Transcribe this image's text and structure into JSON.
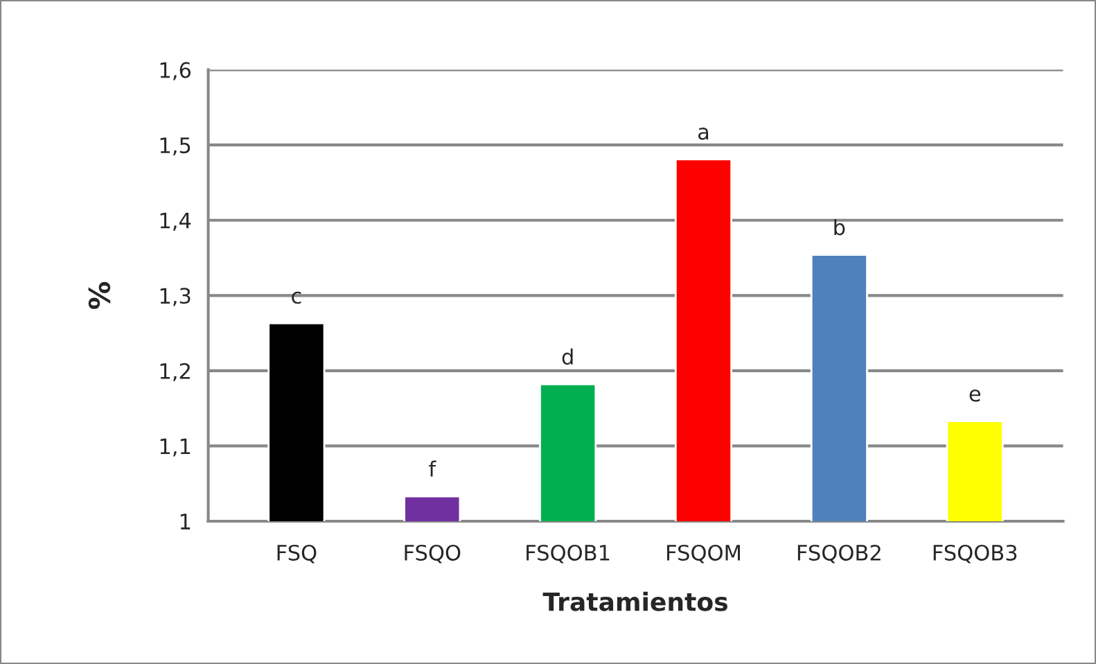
{
  "chart_data": {
    "type": "bar",
    "xlabel": "Tratamientos",
    "ylabel": "%",
    "categories": [
      "FSQ",
      "FSQO",
      "FSQOB1",
      "FSQOM",
      "FSQOB2",
      "FSQOB3"
    ],
    "values": [
      1.263,
      1.033,
      1.182,
      1.481,
      1.354,
      1.133
    ],
    "colors": [
      "#000000",
      "#7030a0",
      "#00b050",
      "#ff0000",
      "#4f81bd",
      "#ffff00"
    ],
    "ylim": [
      1,
      1.6
    ],
    "yticks": [
      {
        "value": 1,
        "label": "1"
      },
      {
        "value": 1.1,
        "label": "1,1"
      },
      {
        "value": 1.2,
        "label": "1,2"
      },
      {
        "value": 1.3,
        "label": "1,3"
      },
      {
        "value": 1.4,
        "label": "1,4"
      },
      {
        "value": 1.5,
        "label": "1,5"
      },
      {
        "value": 1.6,
        "label": "1,6"
      }
    ],
    "grid": "y",
    "annotations": [
      {
        "text": "c",
        "x": "FSQ",
        "y": 1.263
      },
      {
        "text": "f",
        "x": "FSQO",
        "y": 1.033
      },
      {
        "text": "d",
        "x": "FSQOB1",
        "y": 1.182
      },
      {
        "text": "a",
        "x": "FSQOM",
        "y": 1.481
      },
      {
        "text": "b",
        "x": "FSQOB2",
        "y": 1.354
      },
      {
        "text": "e",
        "x": "FSQOB3",
        "y": 1.133
      }
    ]
  }
}
